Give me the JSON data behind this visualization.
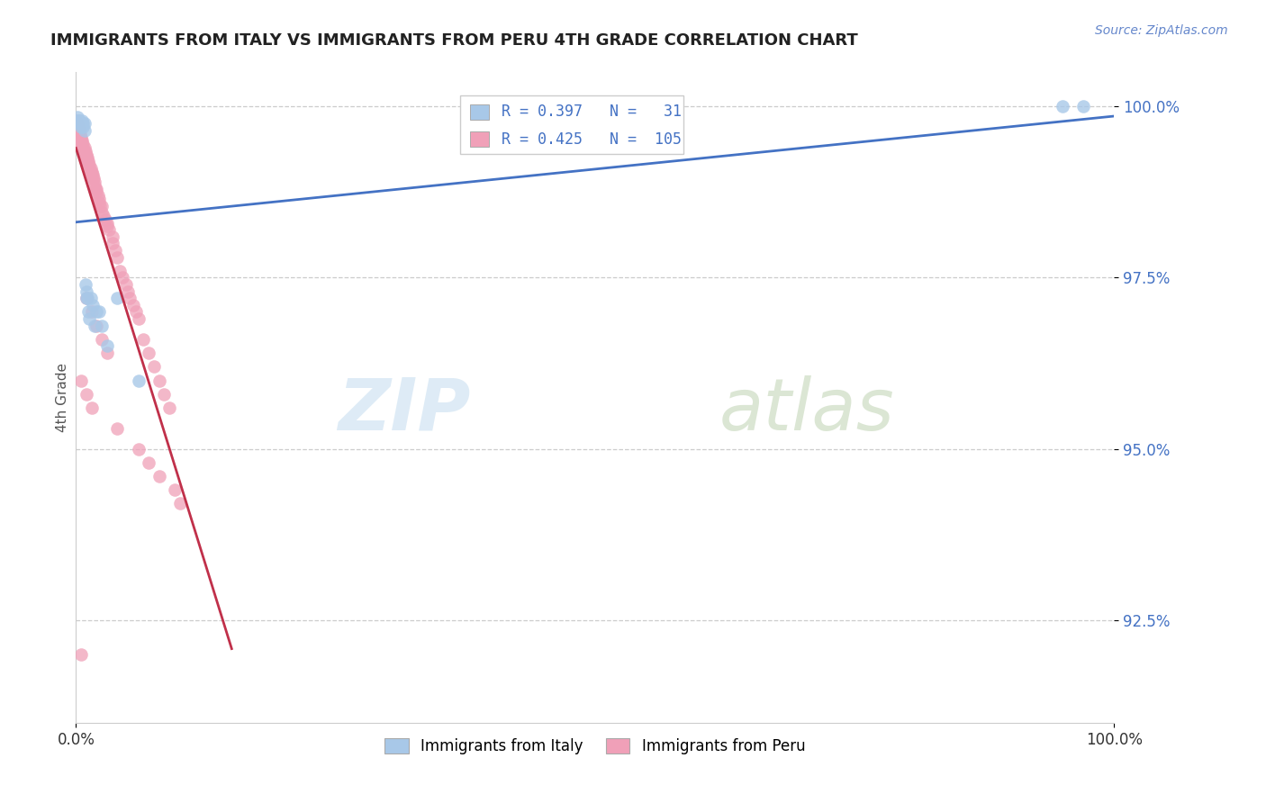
{
  "title": "IMMIGRANTS FROM ITALY VS IMMIGRANTS FROM PERU 4TH GRADE CORRELATION CHART",
  "source_text": "Source: ZipAtlas.com",
  "ylabel": "4th Grade",
  "xlim": [
    0.0,
    1.0
  ],
  "ylim": [
    0.91,
    1.005
  ],
  "yticks": [
    0.925,
    0.95,
    0.975,
    1.0
  ],
  "ytick_labels": [
    "92.5%",
    "95.0%",
    "97.5%",
    "100.0%"
  ],
  "xtick_labels": [
    "0.0%",
    "100.0%"
  ],
  "xticks": [
    0.0,
    1.0
  ],
  "legend_italy": "Immigrants from Italy",
  "legend_peru": "Immigrants from Peru",
  "R_italy": 0.397,
  "N_italy": 31,
  "R_peru": 0.425,
  "N_peru": 105,
  "color_italy": "#a8c8e8",
  "color_peru": "#f0a0b8",
  "line_color_italy": "#4472c4",
  "line_color_peru": "#c0304a",
  "watermark_zip": "ZIP",
  "watermark_atlas": "atlas",
  "italy_x": [
    0.001,
    0.001,
    0.002,
    0.003,
    0.003,
    0.004,
    0.005,
    0.005,
    0.006,
    0.006,
    0.007,
    0.007,
    0.008,
    0.008,
    0.009,
    0.01,
    0.01,
    0.011,
    0.012,
    0.013,
    0.014,
    0.016,
    0.018,
    0.02,
    0.022,
    0.025,
    0.03,
    0.04,
    0.06,
    0.95,
    0.97
  ],
  "italy_y": [
    0.9985,
    0.998,
    0.998,
    0.998,
    0.9975,
    0.9975,
    0.9975,
    0.997,
    0.9975,
    0.998,
    0.997,
    0.9975,
    0.9975,
    0.9965,
    0.974,
    0.973,
    0.972,
    0.972,
    0.97,
    0.969,
    0.972,
    0.971,
    0.968,
    0.97,
    0.97,
    0.968,
    0.965,
    0.972,
    0.96,
    1.0,
    1.0
  ],
  "peru_x": [
    0.0,
    0.0,
    0.0,
    0.0,
    0.0,
    0.0,
    0.001,
    0.001,
    0.001,
    0.001,
    0.001,
    0.001,
    0.001,
    0.002,
    0.002,
    0.002,
    0.002,
    0.002,
    0.003,
    0.003,
    0.003,
    0.003,
    0.004,
    0.004,
    0.004,
    0.004,
    0.005,
    0.005,
    0.005,
    0.006,
    0.006,
    0.006,
    0.007,
    0.007,
    0.007,
    0.008,
    0.008,
    0.008,
    0.009,
    0.009,
    0.01,
    0.01,
    0.01,
    0.011,
    0.011,
    0.012,
    0.012,
    0.013,
    0.013,
    0.014,
    0.014,
    0.015,
    0.015,
    0.016,
    0.016,
    0.017,
    0.018,
    0.018,
    0.019,
    0.02,
    0.02,
    0.021,
    0.022,
    0.022,
    0.023,
    0.025,
    0.025,
    0.027,
    0.028,
    0.03,
    0.03,
    0.032,
    0.035,
    0.035,
    0.038,
    0.04,
    0.042,
    0.045,
    0.048,
    0.05,
    0.052,
    0.055,
    0.058,
    0.06,
    0.065,
    0.07,
    0.075,
    0.08,
    0.085,
    0.09,
    0.01,
    0.015,
    0.02,
    0.025,
    0.03,
    0.06,
    0.07,
    0.08,
    0.095,
    0.1,
    0.005,
    0.01,
    0.015,
    0.04,
    0.005
  ],
  "peru_y": [
    0.998,
    0.9975,
    0.997,
    0.9965,
    0.996,
    0.9955,
    0.9975,
    0.997,
    0.9965,
    0.996,
    0.9955,
    0.995,
    0.9945,
    0.997,
    0.9965,
    0.996,
    0.9955,
    0.995,
    0.9965,
    0.996,
    0.9955,
    0.995,
    0.996,
    0.9955,
    0.995,
    0.9945,
    0.9955,
    0.995,
    0.9945,
    0.995,
    0.9945,
    0.994,
    0.9945,
    0.994,
    0.9935,
    0.994,
    0.9935,
    0.993,
    0.9935,
    0.993,
    0.993,
    0.9925,
    0.992,
    0.9925,
    0.992,
    0.992,
    0.9915,
    0.9915,
    0.991,
    0.991,
    0.9905,
    0.9905,
    0.99,
    0.99,
    0.9895,
    0.9895,
    0.989,
    0.9885,
    0.988,
    0.988,
    0.9875,
    0.987,
    0.9865,
    0.986,
    0.9855,
    0.9855,
    0.9845,
    0.984,
    0.9835,
    0.983,
    0.9825,
    0.982,
    0.981,
    0.98,
    0.979,
    0.978,
    0.976,
    0.975,
    0.974,
    0.973,
    0.972,
    0.971,
    0.97,
    0.969,
    0.966,
    0.964,
    0.962,
    0.96,
    0.958,
    0.956,
    0.972,
    0.97,
    0.968,
    0.966,
    0.964,
    0.95,
    0.948,
    0.946,
    0.944,
    0.942,
    0.96,
    0.958,
    0.956,
    0.953,
    0.92
  ]
}
